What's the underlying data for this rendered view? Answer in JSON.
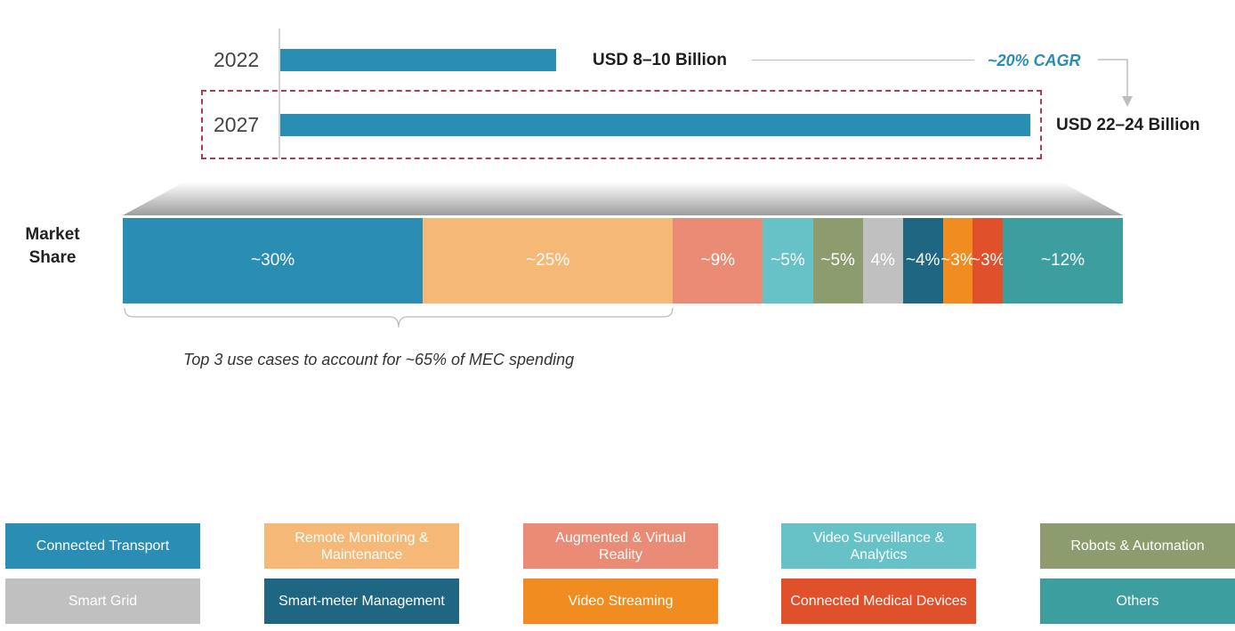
{
  "chart_data": {
    "type": "bar",
    "title": "",
    "market_size": {
      "bars": [
        {
          "year": "2022",
          "value_label": "USD 8–10 Billion",
          "value_mid": 9
        },
        {
          "year": "2027",
          "value_label": "USD 22–24 Billion",
          "value_mid": 23
        }
      ],
      "cagr_label": "~20% CAGR",
      "xlim": [
        0,
        23
      ]
    },
    "market_share": {
      "label": "Market Share",
      "segments": [
        {
          "name": "Connected Transport",
          "label": "~30%",
          "value": 30,
          "color": "#2a8db4"
        },
        {
          "name": "Remote Monitoring & Maintenance",
          "label": "~25%",
          "value": 25,
          "color": "#f5b877"
        },
        {
          "name": "Augmented & Virtual Reality",
          "label": "~9%",
          "value": 9,
          "color": "#e98b75"
        },
        {
          "name": "Video Surveillance & Analytics",
          "label": "~5%",
          "value": 5,
          "color": "#66c2c6"
        },
        {
          "name": "Robots & Automation",
          "label": "~5%",
          "value": 5,
          "color": "#8d9c6f"
        },
        {
          "name": "Smart Grid",
          "label": "4%",
          "value": 4,
          "color": "#c0c0c0"
        },
        {
          "name": "Smart-meter Management",
          "label": "~4%",
          "value": 4,
          "color": "#1f6682"
        },
        {
          "name": "Video Streaming",
          "label": "~3%",
          "value": 3,
          "color": "#f08c20"
        },
        {
          "name": "Connected Medical Devices",
          "label": "~3%",
          "value": 3,
          "color": "#e0502a"
        },
        {
          "name": "Others",
          "label": "~12%",
          "value": 12,
          "color": "#3d9ea0"
        }
      ],
      "annotation": "Top 3 use cases to account for ~65% of MEC spending"
    }
  }
}
